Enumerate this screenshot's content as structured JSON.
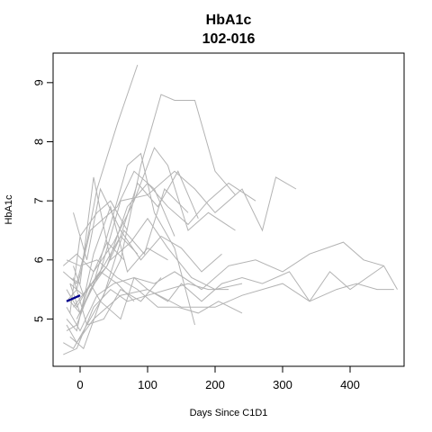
{
  "chart_data": {
    "type": "line",
    "title": "HbA1c",
    "subtitle": "102-016",
    "xlabel": "Days Since C1D1",
    "ylabel": "HbA1c",
    "xlim": [
      -40,
      480
    ],
    "ylim": [
      4.2,
      9.5
    ],
    "xticks": [
      0,
      100,
      200,
      300,
      400
    ],
    "yticks": [
      5,
      6,
      7,
      8,
      9
    ],
    "grid": false,
    "legend": "none",
    "colors": {
      "background_series": "#b3b3b3",
      "highlight_series": "#00008b"
    },
    "highlight_series": {
      "name": "102-016",
      "x": [
        -20,
        0
      ],
      "y": [
        5.3,
        5.4
      ]
    },
    "background_series": [
      {
        "x": [
          -25,
          -5,
          10,
          25,
          55,
          85
        ],
        "y": [
          5.8,
          5.6,
          6.3,
          7.2,
          8.3,
          9.3
        ]
      },
      {
        "x": [
          -20,
          -5,
          15,
          30,
          60,
          90,
          120,
          140,
          170,
          200,
          230
        ],
        "y": [
          5.5,
          5.2,
          5.6,
          5.3,
          6.0,
          7.6,
          8.8,
          8.7,
          8.7,
          7.5,
          7.1
        ]
      },
      {
        "x": [
          -15,
          0,
          30,
          60,
          100,
          140,
          170,
          200,
          240,
          270,
          290,
          320
        ],
        "y": [
          5.3,
          5.1,
          5.8,
          7.0,
          7.1,
          7.5,
          7.2,
          6.8,
          7.2,
          6.5,
          7.4,
          7.2
        ]
      },
      {
        "x": [
          -20,
          -5,
          20,
          60,
          100,
          150,
          200,
          240,
          300,
          340,
          380,
          410,
          440,
          465
        ],
        "y": [
          4.9,
          4.6,
          5.0,
          5.4,
          5.5,
          5.2,
          5.2,
          5.4,
          5.6,
          5.3,
          5.5,
          5.6,
          5.5,
          5.5
        ]
      },
      {
        "x": [
          -15,
          5,
          30,
          60,
          80,
          100,
          130,
          150,
          180,
          210,
          240,
          270,
          310,
          340,
          370,
          400,
          450
        ],
        "y": [
          4.7,
          4.5,
          5.3,
          5.0,
          5.7,
          5.5,
          5.3,
          5.6,
          5.3,
          5.6,
          5.7,
          5.6,
          5.8,
          5.3,
          5.8,
          5.5,
          5.9
        ]
      },
      {
        "x": [
          -10,
          10,
          40,
          70,
          100,
          130,
          160,
          190,
          220,
          260
        ],
        "y": [
          5.2,
          5.5,
          5.9,
          6.9,
          7.3,
          6.9,
          6.6,
          7.0,
          7.3,
          7.0
        ]
      },
      {
        "x": [
          -25,
          -5,
          20,
          50,
          80,
          110,
          130,
          160,
          190,
          230
        ],
        "y": [
          5.9,
          6.1,
          5.8,
          6.3,
          7.0,
          7.9,
          7.6,
          6.5,
          6.8,
          6.5
        ]
      },
      {
        "x": [
          -20,
          0,
          25,
          50,
          80,
          110,
          140,
          180,
          220,
          260,
          300,
          340,
          390,
          420,
          450,
          470
        ],
        "y": [
          5.2,
          4.8,
          5.4,
          5.6,
          5.7,
          5.6,
          5.8,
          5.5,
          5.9,
          6.0,
          5.8,
          6.1,
          6.3,
          6.0,
          5.9,
          5.5
        ]
      },
      {
        "x": [
          -15,
          5,
          35,
          60,
          85,
          115,
          145,
          175
        ],
        "y": [
          5.6,
          5.4,
          5.9,
          6.4,
          7.3,
          6.9,
          7.5,
          6.7
        ]
      },
      {
        "x": [
          -10,
          10,
          30,
          60,
          90,
          120,
          150,
          180,
          210
        ],
        "y": [
          6.8,
          6.0,
          7.2,
          6.5,
          6.0,
          6.4,
          6.2,
          5.8,
          6.1
        ]
      },
      {
        "x": [
          -5,
          20,
          40,
          70,
          90,
          110,
          140,
          170
        ],
        "y": [
          5.0,
          5.6,
          6.4,
          7.6,
          7.8,
          6.8,
          6.2,
          4.9
        ]
      },
      {
        "x": [
          -20,
          0,
          25,
          55,
          85,
          115,
          145,
          175,
          205,
          240
        ],
        "y": [
          6.0,
          5.9,
          6.0,
          5.7,
          5.5,
          5.2,
          5.2,
          5.1,
          5.3,
          5.1
        ]
      },
      {
        "x": [
          -15,
          0,
          20,
          45,
          75,
          100,
          130,
          165,
          200,
          240
        ],
        "y": [
          5.7,
          5.6,
          7.4,
          6.0,
          6.3,
          6.7,
          6.2,
          5.7,
          5.5,
          5.6
        ]
      },
      {
        "x": [
          -20,
          -5,
          20,
          45,
          70,
          100,
          130
        ],
        "y": [
          5.0,
          4.8,
          6.1,
          6.9,
          5.8,
          6.2,
          6.0
        ]
      },
      {
        "x": [
          -25,
          -10,
          10,
          35,
          65,
          95,
          125,
          160
        ],
        "y": [
          4.6,
          4.5,
          4.9,
          5.4,
          6.5,
          6.1,
          7.2,
          6.8
        ]
      },
      {
        "x": [
          -15,
          0,
          25,
          45,
          70
        ],
        "y": [
          5.1,
          6.4,
          6.8,
          7.0,
          6.5
        ]
      },
      {
        "x": [
          -20,
          -5,
          15,
          40,
          60,
          85
        ],
        "y": [
          4.8,
          4.9,
          5.5,
          5.9,
          6.4,
          6.1
        ]
      },
      {
        "x": [
          -10,
          5,
          30,
          55,
          80
        ],
        "y": [
          5.9,
          5.4,
          5.8,
          5.6,
          5.3
        ]
      },
      {
        "x": [
          -25,
          -5,
          20,
          45,
          70,
          100,
          130,
          160,
          190,
          220
        ],
        "y": [
          4.4,
          4.5,
          5.2,
          5.5,
          5.3,
          5.4,
          5.5,
          5.6,
          5.5,
          5.5
        ]
      },
      {
        "x": [
          -15,
          0,
          20,
          40,
          65
        ],
        "y": [
          5.6,
          5.1,
          5.8,
          6.3,
          6.0
        ]
      },
      {
        "x": [
          -20,
          -5,
          15,
          35,
          55,
          80,
          110,
          140
        ],
        "y": [
          5.3,
          5.5,
          6.5,
          6.7,
          6.9,
          7.5,
          7.2,
          6.4
        ]
      },
      {
        "x": [
          -10,
          10,
          35,
          60,
          90,
          120
        ],
        "y": [
          5.7,
          4.9,
          5.0,
          5.5,
          5.3,
          5.7
        ]
      }
    ]
  }
}
